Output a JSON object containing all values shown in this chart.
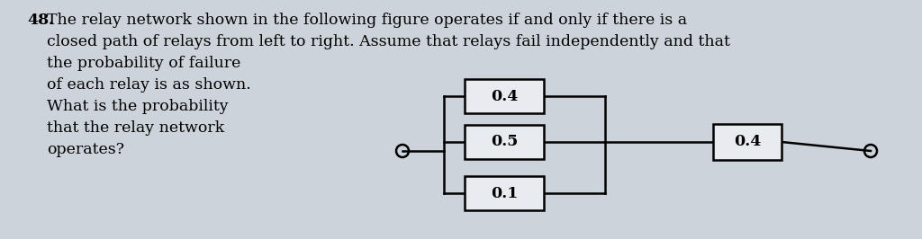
{
  "title_num": "48.",
  "text_line1": "The relay network shown in the following figure operates if and only if there is a",
  "text_line2": "closed path of relays from left to right. Assume that relays fail independently and that",
  "text_lines_left": [
    "the probability of failure",
    "of each relay is as shown.",
    "What is the probability",
    "that the relay network",
    "operates?"
  ],
  "background_color": "#cdd3db",
  "text_color": "#000000",
  "box_color": "#e8ecf0",
  "box_edge_color": "#000000",
  "parallel_labels": [
    "0.4",
    "0.5",
    "0.1"
  ],
  "series_label": "0.4",
  "font_size": 12.5,
  "diagram_font_size": 12.5
}
